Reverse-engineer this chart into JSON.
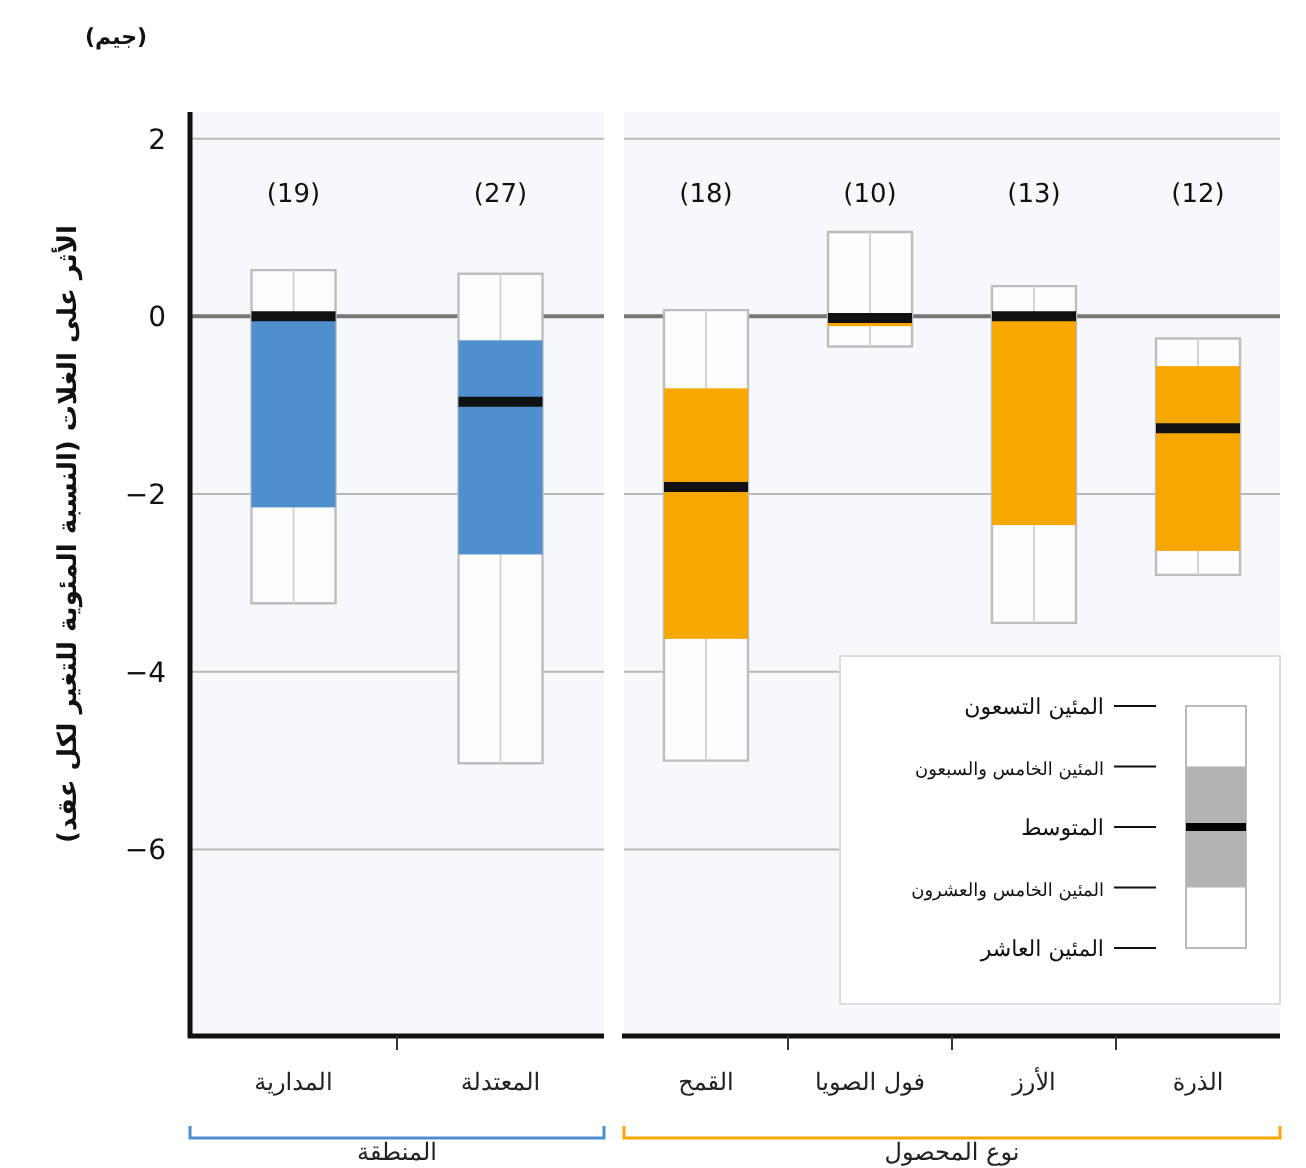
{
  "chart_data": [
    {
      "type": "box",
      "title": "(جيم)",
      "ylabel": "الأثر على الغلات (النسبة المئوية للتغير لكل عقد)",
      "xlabel": "المنطقة",
      "categories": [
        "المدارية",
        "المعتدلة"
      ],
      "ylim": [
        -8.1,
        2.3
      ],
      "yticks": [
        2,
        0,
        {
          "value": -2,
          "label": "−2"
        },
        {
          "value": -4,
          "label": "−4"
        },
        {
          "value": -6,
          "label": "−6"
        }
      ],
      "grid": "y",
      "ref_lines": [
        {
          "axis": "y",
          "value": 0,
          "color": "#777777"
        }
      ],
      "series": [
        {
          "color": "#4f8fcd",
          "boxes": [
            {
              "low": -3.23,
              "q1": -2.15,
              "median": 0.0,
              "q3": 0.0,
              "high": 0.52
            },
            {
              "low": -5.03,
              "q1": -2.68,
              "median": -0.96,
              "q3": -0.27,
              "high": 0.48
            }
          ]
        }
      ],
      "annotations": [
        "(19)",
        "(27)"
      ]
    },
    {
      "type": "box",
      "xlabel": "نوع المحصول",
      "categories": [
        "القمح",
        "فول الصويا",
        "الأرز",
        "الذرة"
      ],
      "ylim": [
        -8.1,
        2.3
      ],
      "yticks": [
        2,
        0,
        -2,
        -4,
        -6
      ],
      "grid": "y",
      "tick_labels": "x",
      "ref_lines": [
        {
          "axis": "y",
          "value": 0,
          "color": "#777777"
        }
      ],
      "series": [
        {
          "color": "#f7a800",
          "boxes": [
            {
              "low": -5.0,
              "q1": -3.63,
              "median": -1.92,
              "q3": -0.81,
              "high": 0.07
            },
            {
              "low": -0.34,
              "q1": -0.11,
              "median": -0.02,
              "q3": 0.0,
              "high": 0.95
            },
            {
              "low": -3.45,
              "q1": -2.35,
              "median": 0.0,
              "q3": 0.0,
              "high": 0.34
            },
            {
              "low": -2.91,
              "q1": -2.64,
              "median": -1.26,
              "q3": -0.56,
              "high": -0.25
            }
          ]
        }
      ],
      "annotations": [
        "(18)",
        "(10)",
        "(13)",
        "(12)",
        "المئين التسعون",
        "المئين الخامس والسبعون",
        "المتوسط",
        "المئين الخامس والعشرون",
        "المئين العاشر"
      ]
    }
  ]
}
